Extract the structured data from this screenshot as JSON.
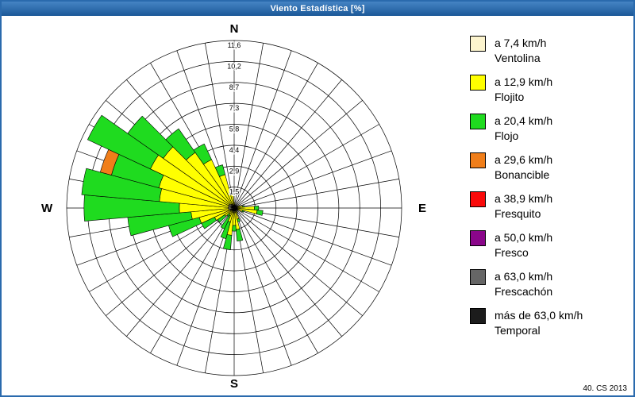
{
  "window": {
    "title": "Viento Estadística [%]",
    "footer": "40. CS 2013"
  },
  "compass": {
    "north": "N",
    "east": "E",
    "south": "S",
    "west": "W"
  },
  "legend": {
    "items": [
      {
        "speed": "a 7,4 km/h",
        "name": "Ventolina",
        "color": "#FCF4CE"
      },
      {
        "speed": "a 12,9 km/h",
        "name": "Flojito",
        "color": "#FFFF00"
      },
      {
        "speed": "a 20,4 km/h",
        "name": "Flojo",
        "color": "#1FDB1F"
      },
      {
        "speed": "a 29,6 km/h",
        "name": "Bonancible",
        "color": "#F07E1A"
      },
      {
        "speed": "a 38,9 km/h",
        "name": "Fresquito",
        "color": "#FA0A0A"
      },
      {
        "speed": "a 50,0 km/h",
        "name": "Fresco",
        "color": "#8A068A"
      },
      {
        "speed": "a 63,0 km/h",
        "name": "Frescachón",
        "color": "#666666"
      },
      {
        "speed": "más de 63,0 km/h",
        "name": "Temporal",
        "color": "#1C1C1C"
      }
    ]
  },
  "chart_data": {
    "type": "windrose",
    "title": "Viento Estadística [%]",
    "units": "%",
    "sector_count": 36,
    "sector_width_deg": 10,
    "rings": [
      1.45,
      2.9,
      4.35,
      5.8,
      7.25,
      8.7,
      10.15,
      11.6
    ],
    "ring_labels": [
      "1,5",
      "2,9",
      "4,4",
      "5,8",
      "7,3",
      "8,7",
      "10,2",
      "11,6"
    ],
    "rlim": [
      0,
      11.6
    ],
    "grid": true,
    "legend_position": "right",
    "series": [
      {
        "name": "Ventolina",
        "speed": "a 7,4 km/h",
        "color": "#FCF4CE",
        "values": [
          0,
          0,
          0,
          0,
          0,
          0,
          0,
          0.1,
          0.2,
          0.2,
          0.2,
          0.1,
          0,
          0,
          0,
          0.1,
          0.2,
          0.3,
          0.2,
          0.3,
          0.2,
          0.1,
          0.1,
          0.2,
          0.3,
          0.3,
          0.4,
          0.4,
          0.4,
          0.4,
          0.4,
          0.4,
          0.3,
          0.3,
          0.2,
          0.1
        ]
      },
      {
        "name": "Flojito",
        "speed": "a 12,9 km/h",
        "color": "#FFFF00",
        "values": [
          0.4,
          0.2,
          0.1,
          0.2,
          0.1,
          0.2,
          0.2,
          0.3,
          0.4,
          1.2,
          1.4,
          0.5,
          0.3,
          0.2,
          0.2,
          0.3,
          0.6,
          1.2,
          1.0,
          1.6,
          0.8,
          0.5,
          0.4,
          0.6,
          1.2,
          2.2,
          2.6,
          3.4,
          4.8,
          5.0,
          6.0,
          5.6,
          4.4,
          3.4,
          2.2,
          1.0
        ]
      },
      {
        "name": "Flojo",
        "speed": "a 20,4 km/h",
        "color": "#1FDB1F",
        "values": [
          0,
          0,
          0,
          0,
          0,
          0,
          0,
          0,
          0.1,
          0.3,
          0.4,
          0.1,
          0,
          0,
          0,
          0,
          0.2,
          0.8,
          0.4,
          1.0,
          1.2,
          1.0,
          0.2,
          0.6,
          1.0,
          2.2,
          4.4,
          6.6,
          5.4,
          3.4,
          4.8,
          3.0,
          2.0,
          1.2,
          0.7,
          0.2
        ]
      },
      {
        "name": "Bonancible",
        "speed": "a 29,6 km/h",
        "color": "#F07E1A",
        "values": [
          0,
          0,
          0,
          0,
          0,
          0,
          0,
          0,
          0,
          0,
          0,
          0,
          0,
          0,
          0,
          0,
          0,
          0,
          0,
          0,
          0,
          0,
          0,
          0,
          0,
          0,
          0,
          0,
          0,
          0.8,
          0,
          0,
          0,
          0,
          0,
          0
        ]
      },
      {
        "name": "Fresquito",
        "speed": "a 38,9 km/h",
        "color": "#FA0A0A",
        "values": [
          0,
          0,
          0,
          0,
          0,
          0,
          0,
          0,
          0,
          0,
          0,
          0,
          0,
          0,
          0,
          0,
          0,
          0,
          0,
          0,
          0,
          0,
          0,
          0,
          0,
          0,
          0,
          0,
          0,
          0,
          0,
          0,
          0,
          0,
          0,
          0
        ]
      },
      {
        "name": "Fresco",
        "speed": "a 50,0 km/h",
        "color": "#8A068A",
        "values": [
          0,
          0,
          0,
          0,
          0,
          0,
          0,
          0,
          0,
          0,
          0,
          0,
          0,
          0,
          0,
          0,
          0,
          0,
          0,
          0,
          0,
          0,
          0,
          0,
          0,
          0,
          0,
          0,
          0,
          0,
          0,
          0,
          0,
          0,
          0,
          0
        ]
      },
      {
        "name": "Frescachón",
        "speed": "a 63,0 km/h",
        "color": "#666666",
        "values": [
          0,
          0,
          0,
          0,
          0,
          0,
          0,
          0,
          0,
          0,
          0,
          0,
          0,
          0,
          0,
          0,
          0,
          0,
          0,
          0,
          0,
          0,
          0,
          0,
          0,
          0,
          0,
          0,
          0,
          0,
          0,
          0,
          0,
          0,
          0,
          0
        ]
      },
      {
        "name": "Temporal",
        "speed": "más de 63,0 km/h",
        "color": "#1C1C1C",
        "values": [
          0,
          0,
          0,
          0,
          0,
          0,
          0,
          0,
          0,
          0,
          0,
          0,
          0,
          0,
          0,
          0,
          0,
          0,
          0,
          0,
          0,
          0,
          0,
          0,
          0,
          0,
          0,
          0,
          0,
          0,
          0,
          0,
          0,
          0,
          0,
          0
        ]
      }
    ]
  }
}
